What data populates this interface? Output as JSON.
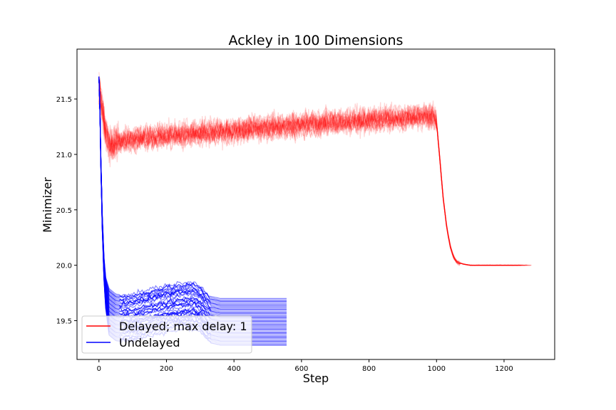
{
  "chart_data": {
    "type": "line",
    "title": "Ackley in 100 Dimensions",
    "xlabel": "Step",
    "ylabel": "Minimizer",
    "xlim": [
      -65,
      1350
    ],
    "ylim": [
      19.15,
      21.95
    ],
    "xticks": [
      0,
      200,
      400,
      600,
      800,
      1000,
      1200
    ],
    "yticks": [
      19.5,
      20.0,
      20.5,
      21.0,
      21.5
    ],
    "ytick_labels": [
      "19.5",
      "20.0",
      "20.5",
      "21.0",
      "21.5"
    ],
    "legend_position": "lower-left",
    "series": [
      {
        "name": "Delayed; max delay: 1",
        "color": "#ff0000",
        "description_points": {
          "x": [
            0,
            10,
            20,
            30,
            50,
            100,
            200,
            400,
            600,
            800,
            990,
            1000,
            1010,
            1020,
            1030,
            1040,
            1050,
            1060,
            1080,
            1100,
            1200,
            1250
          ],
          "y": [
            21.6,
            21.45,
            21.2,
            21.1,
            21.12,
            21.15,
            21.18,
            21.23,
            21.28,
            21.32,
            21.36,
            21.3,
            20.95,
            20.6,
            20.35,
            20.18,
            20.08,
            20.03,
            20.01,
            20.0,
            20.0,
            20.0
          ]
        }
      },
      {
        "name": "Undelayed",
        "color": "#0000ff",
        "description_points": {
          "x": [
            0,
            3,
            6,
            10,
            15,
            20,
            30,
            50,
            100,
            150,
            200,
            250,
            280,
            300,
            330,
            360,
            400,
            450,
            500,
            556
          ],
          "y": [
            21.7,
            21.4,
            20.9,
            20.4,
            20.0,
            19.8,
            19.65,
            19.6,
            19.58,
            19.6,
            19.63,
            19.66,
            19.68,
            19.66,
            19.58,
            19.56,
            19.56,
            19.56,
            19.56,
            19.56
          ]
        },
        "final_values_range": [
          19.28,
          19.7
        ]
      }
    ]
  }
}
